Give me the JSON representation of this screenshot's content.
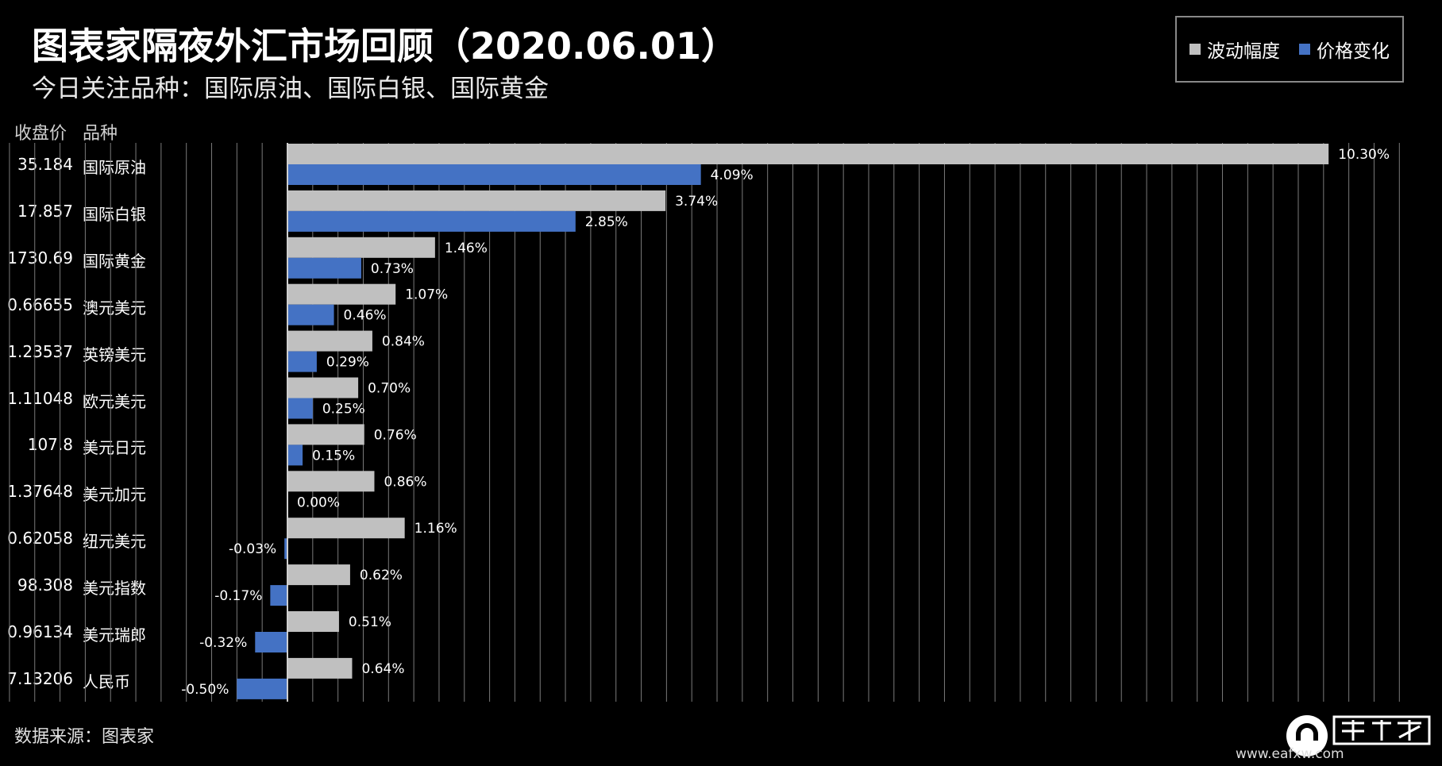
{
  "header": {
    "title": "图表家隔夜外汇市场回顾（2020.06.01）",
    "subtitle": "今日关注品种：国际原油、国际白银、国际黄金"
  },
  "table_headers": {
    "price": "收盘价",
    "name": "品种"
  },
  "source": "数据来源：图表家",
  "website": "www.eafxw.com",
  "colors": {
    "amplitude": "#c0c0c0",
    "change": "#4472c4",
    "background": "#000000",
    "grid": "#7a7a7a"
  },
  "chart_data": {
    "type": "bar",
    "orientation": "horizontal",
    "legend": {
      "position": "top-right"
    },
    "grid": true,
    "xlim": [
      -0.06,
      0.11
    ],
    "categories": [
      "国际原油",
      "国际白银",
      "国际黄金",
      "澳元美元",
      "英镑美元",
      "欧元美元",
      "美元日元",
      "美元加元",
      "纽元美元",
      "美元指数",
      "美元瑞郎",
      "人民币"
    ],
    "closing_prices": [
      "35.184",
      "17.857",
      "1730.69",
      "0.66655",
      "1.23537",
      "1.11048",
      "107.8",
      "1.37648",
      "0.62058",
      "98.308",
      "0.96134",
      "7.13206"
    ],
    "series": [
      {
        "name": "波动幅度",
        "color": "#c0c0c0",
        "values": [
          0.103,
          0.0374,
          0.0146,
          0.0107,
          0.0084,
          0.007,
          0.0076,
          0.0086,
          0.0116,
          0.0062,
          0.0051,
          0.0064
        ],
        "labels": [
          "10.30%",
          "3.74%",
          "1.46%",
          "1.07%",
          "0.84%",
          "0.70%",
          "0.76%",
          "0.86%",
          "1.16%",
          "0.62%",
          "0.51%",
          "0.64%"
        ]
      },
      {
        "name": "价格变化",
        "color": "#4472c4",
        "values": [
          0.0409,
          0.0285,
          0.0073,
          0.0046,
          0.0029,
          0.0025,
          0.0015,
          0.0,
          -0.0003,
          -0.0017,
          -0.0032,
          -0.005
        ],
        "labels": [
          "4.09%",
          "2.85%",
          "0.73%",
          "0.46%",
          "0.29%",
          "0.25%",
          "0.15%",
          "0.00%",
          "-0.03%",
          "-0.17%",
          "-0.32%",
          "-0.50%"
        ]
      }
    ]
  }
}
